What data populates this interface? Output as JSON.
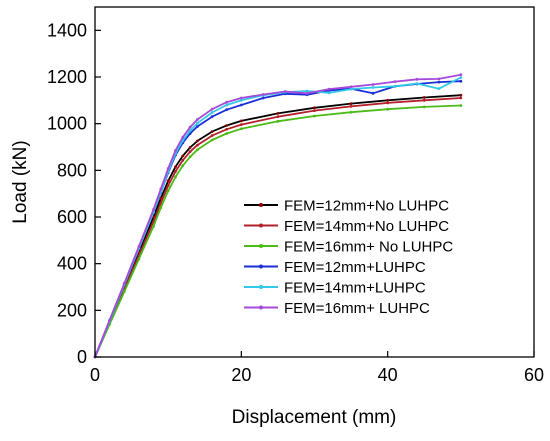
{
  "chart_data": {
    "type": "line",
    "title": "",
    "xlabel": "Displacement (mm)",
    "ylabel": "Load (kN)",
    "xlim": [
      0,
      60
    ],
    "ylim": [
      0,
      1500
    ],
    "xticks": [
      0,
      20,
      40,
      60
    ],
    "yticks": [
      0,
      200,
      400,
      600,
      800,
      1000,
      1200,
      1400
    ],
    "grid": false,
    "legend_position": "center-right",
    "series": [
      {
        "name": "FEM=12mm+No LUHPC",
        "color": "#000000",
        "marker_color": "#8b0000",
        "x": [
          0,
          2,
          4,
          6,
          8,
          9,
          10,
          11,
          12,
          13,
          14,
          16,
          18,
          20,
          25,
          30,
          35,
          40,
          45,
          50
        ],
        "y": [
          0,
          150,
          300,
          450,
          600,
          680,
          755,
          815,
          862,
          898,
          926,
          966,
          992,
          1012,
          1044,
          1068,
          1086,
          1100,
          1112,
          1122
        ]
      },
      {
        "name": "FEM=14mm+No LUHPC",
        "color": "#b3202a",
        "marker_color": "#b3202a",
        "x": [
          0,
          2,
          4,
          6,
          8,
          9,
          10,
          11,
          12,
          13,
          14,
          16,
          18,
          20,
          25,
          30,
          35,
          40,
          45,
          50
        ],
        "y": [
          0,
          145,
          290,
          435,
          580,
          660,
          735,
          795,
          843,
          880,
          908,
          949,
          976,
          996,
          1030,
          1056,
          1074,
          1089,
          1100,
          1110
        ]
      },
      {
        "name": "FEM=16mm+ No LUHPC",
        "color": "#4cbb17",
        "marker_color": "#4cbb17",
        "x": [
          0,
          2,
          4,
          6,
          8,
          9,
          10,
          11,
          12,
          13,
          14,
          16,
          18,
          20,
          25,
          30,
          35,
          40,
          45,
          50
        ],
        "y": [
          0,
          140,
          280,
          420,
          560,
          640,
          712,
          772,
          820,
          858,
          888,
          930,
          958,
          978,
          1010,
          1033,
          1049,
          1062,
          1072,
          1078
        ]
      },
      {
        "name": "FEM=12mm+LUHPC",
        "color": "#1a2fd6",
        "marker_color": "#1a2fd6",
        "x": [
          0,
          2,
          4,
          6,
          8,
          9,
          10,
          11,
          12,
          13,
          14,
          16,
          18,
          20,
          23,
          26,
          29,
          32,
          35,
          38,
          41,
          44,
          47,
          50
        ],
        "y": [
          0,
          155,
          310,
          465,
          620,
          705,
          790,
          865,
          918,
          958,
          988,
          1030,
          1060,
          1080,
          1110,
          1128,
          1124,
          1142,
          1150,
          1130,
          1160,
          1170,
          1178,
          1182
        ]
      },
      {
        "name": "FEM=14mm+LUHPC",
        "color": "#33c7e8",
        "marker_color": "#33c7e8",
        "x": [
          0,
          2,
          4,
          6,
          8,
          9,
          10,
          11,
          12,
          13,
          14,
          16,
          18,
          20,
          23,
          26,
          29,
          32,
          35,
          38,
          41,
          44,
          47,
          50
        ],
        "y": [
          0,
          155,
          310,
          465,
          620,
          708,
          795,
          872,
          928,
          970,
          1002,
          1048,
          1080,
          1100,
          1122,
          1135,
          1140,
          1132,
          1148,
          1155,
          1160,
          1172,
          1150,
          1198
        ]
      },
      {
        "name": "FEM=16mm+ LUHPC",
        "color": "#a64ad9",
        "marker_color": "#a64ad9",
        "x": [
          0,
          2,
          4,
          6,
          8,
          9,
          10,
          11,
          12,
          13,
          14,
          16,
          18,
          20,
          23,
          26,
          29,
          32,
          35,
          38,
          41,
          44,
          47,
          50
        ],
        "y": [
          0,
          158,
          316,
          474,
          632,
          720,
          808,
          885,
          942,
          985,
          1018,
          1062,
          1092,
          1110,
          1125,
          1138,
          1130,
          1148,
          1158,
          1168,
          1180,
          1190,
          1192,
          1210
        ]
      }
    ]
  }
}
